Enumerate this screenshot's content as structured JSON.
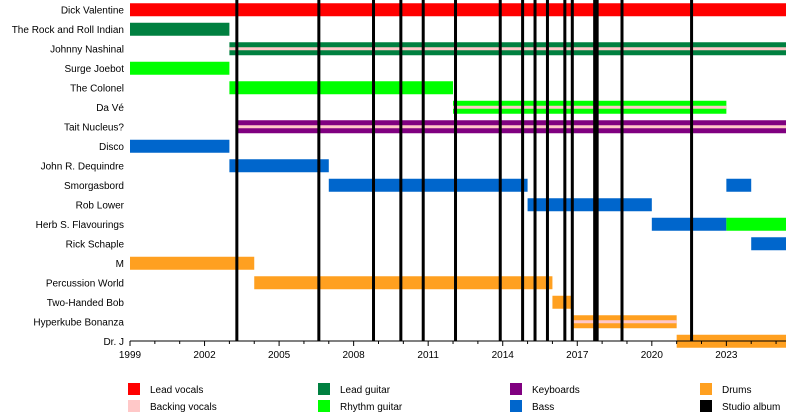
{
  "chart_data": {
    "type": "timeline",
    "x_range": [
      1999,
      2025.4
    ],
    "x_ticks": [
      1999,
      2002,
      2005,
      2008,
      2011,
      2014,
      2017,
      2020,
      2023
    ],
    "members": [
      {
        "name": "Dick Valentine",
        "stints": [
          {
            "start": 1999,
            "end": 2025.4,
            "roles": [
              "Lead vocals"
            ]
          }
        ]
      },
      {
        "name": "The Rock and Roll Indian",
        "stints": [
          {
            "start": 1999,
            "end": 2003,
            "roles": [
              "Lead guitar"
            ]
          }
        ]
      },
      {
        "name": "Johnny Nashinal",
        "stints": [
          {
            "start": 2003,
            "end": 2025.4,
            "roles": [
              "Lead guitar",
              "Backing vocals"
            ]
          }
        ]
      },
      {
        "name": "Surge Joebot",
        "stints": [
          {
            "start": 1999,
            "end": 2003,
            "roles": [
              "Rhythm guitar"
            ]
          }
        ]
      },
      {
        "name": "The Colonel",
        "stints": [
          {
            "start": 2003,
            "end": 2012,
            "roles": [
              "Rhythm guitar"
            ]
          }
        ]
      },
      {
        "name": "Da Vé",
        "stints": [
          {
            "start": 2012,
            "end": 2023,
            "roles": [
              "Rhythm guitar",
              "Backing vocals"
            ]
          }
        ]
      },
      {
        "name": "Tait Nucleus?",
        "stints": [
          {
            "start": 2003.3,
            "end": 2025.4,
            "roles": [
              "Keyboards",
              "Backing vocals"
            ]
          }
        ]
      },
      {
        "name": "Disco",
        "stints": [
          {
            "start": 1999,
            "end": 2003,
            "roles": [
              "Bass"
            ]
          }
        ]
      },
      {
        "name": "John R. Dequindre",
        "stints": [
          {
            "start": 2003,
            "end": 2007,
            "roles": [
              "Bass"
            ]
          }
        ]
      },
      {
        "name": "Smorgasbord",
        "stints": [
          {
            "start": 2007,
            "end": 2015,
            "roles": [
              "Bass"
            ]
          },
          {
            "start": 2023,
            "end": 2024,
            "roles": [
              "Bass"
            ]
          }
        ]
      },
      {
        "name": "Rob Lower",
        "stints": [
          {
            "start": 2015,
            "end": 2020,
            "roles": [
              "Bass"
            ]
          }
        ]
      },
      {
        "name": "Herb S. Flavourings",
        "stints": [
          {
            "start": 2020,
            "end": 2023,
            "roles": [
              "Bass"
            ]
          },
          {
            "start": 2023,
            "end": 2025.4,
            "roles": [
              "Rhythm guitar"
            ]
          }
        ]
      },
      {
        "name": "Rick Schaple",
        "stints": [
          {
            "start": 2024,
            "end": 2025.4,
            "roles": [
              "Bass"
            ]
          }
        ]
      },
      {
        "name": "M",
        "stints": [
          {
            "start": 1999,
            "end": 2004,
            "roles": [
              "Drums"
            ]
          }
        ]
      },
      {
        "name": "Percussion World",
        "stints": [
          {
            "start": 2004,
            "end": 2016,
            "roles": [
              "Drums"
            ]
          }
        ]
      },
      {
        "name": "Two-Handed Bob",
        "stints": [
          {
            "start": 2016,
            "end": 2016.8,
            "roles": [
              "Drums"
            ]
          }
        ]
      },
      {
        "name": "Hyperkube Bonanza",
        "stints": [
          {
            "start": 2016.8,
            "end": 2021,
            "roles": [
              "Drums",
              "Backing vocals"
            ]
          }
        ]
      },
      {
        "name": "Dr. J",
        "stints": [
          {
            "start": 2021,
            "end": 2025.4,
            "roles": [
              "Drums"
            ]
          }
        ]
      }
    ],
    "albums": [
      2003.3,
      2006.6,
      2008.8,
      2009.9,
      2010.8,
      2012.1,
      2013.9,
      2014.8,
      2015.3,
      2015.8,
      2016.5,
      2016.8,
      2017.7,
      2017.8,
      2018.8,
      2021.6
    ],
    "legend": [
      {
        "label": "Lead vocals",
        "color": "#ff0000"
      },
      {
        "label": "Backing vocals",
        "color": "#ffc8c8"
      },
      {
        "label": "Lead guitar",
        "color": "#008040"
      },
      {
        "label": "Rhythm guitar",
        "color": "#00ff00"
      },
      {
        "label": "Keyboards",
        "color": "#800080"
      },
      {
        "label": "Bass",
        "color": "#0066cc"
      },
      {
        "label": "Drums",
        "color": "#ffa020"
      },
      {
        "label": "Studio album",
        "color": "#000000"
      }
    ]
  }
}
